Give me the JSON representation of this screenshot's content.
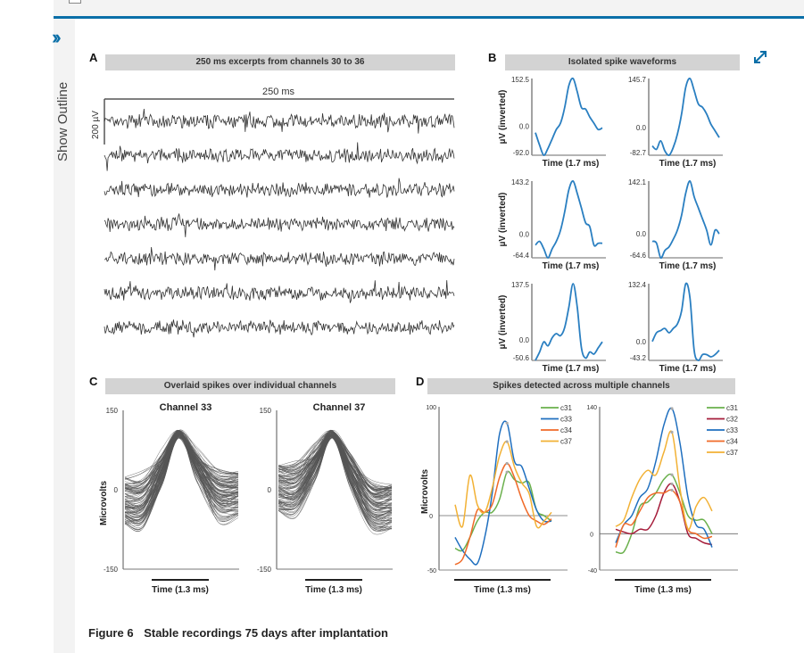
{
  "sidebar": {
    "toggle_icon": "double-chevron-right-icon",
    "label": "Show Outline"
  },
  "expand_icon": "expand-diagonal-icon",
  "figure": {
    "number": "Figure 6",
    "title": "Stable recordings 75 days after implantation"
  },
  "chart_data": [
    {
      "panel": "A",
      "type": "line",
      "title": "250 ms excerpts from channels 30 to 36",
      "time_scale_label": "250 ms",
      "amplitude_scale_label": "200 µV",
      "channels": [
        30,
        31,
        32,
        33,
        34,
        35,
        36
      ],
      "series_count": 7,
      "color": "#333333"
    },
    {
      "panel": "B",
      "type": "line",
      "title": "Isolated spike waveforms",
      "ylabel": "µV (inverted)",
      "xlabel": "Time (1.7 ms)",
      "color": "#2a7fc1",
      "waveforms": [
        {
          "ymax": "152.5",
          "yzero": "0.0",
          "ymin": "-92.0",
          "values": [
            -20,
            -60,
            -92,
            -70,
            -40,
            -10,
            10,
            60,
            130,
            152.5,
            110,
            60,
            55,
            30,
            10,
            -10,
            -5
          ]
        },
        {
          "ymax": "145.7",
          "yzero": "0.0",
          "ymin": "-82.7",
          "values": [
            -55,
            -65,
            -40,
            -70,
            -82.7,
            -60,
            -20,
            40,
            120,
            145.7,
            110,
            70,
            60,
            40,
            10,
            -10,
            -30
          ]
        },
        {
          "ymax": "143.2",
          "yzero": "0.0",
          "ymin": "-64.4",
          "values": [
            -30,
            -20,
            -40,
            -64.4,
            -40,
            -20,
            10,
            60,
            120,
            143.2,
            110,
            70,
            30,
            20,
            -30,
            -25,
            -25
          ]
        },
        {
          "ymax": "142.1",
          "yzero": "0.0",
          "ymin": "-64.6",
          "values": [
            -20,
            -25,
            -64.6,
            -45,
            -35,
            -15,
            10,
            50,
            110,
            142.1,
            100,
            70,
            40,
            10,
            -30,
            10,
            0
          ]
        },
        {
          "ymax": "137.5",
          "yzero": "0.0",
          "ymin": "-50.6",
          "values": [
            -50.6,
            -30,
            -5,
            -15,
            5,
            15,
            10,
            30,
            80,
            137.5,
            80,
            -20,
            -45,
            -30,
            -35,
            -20,
            -5
          ]
        },
        {
          "ymax": "132.4",
          "yzero": "0.0",
          "ymin": "-43.2",
          "values": [
            0,
            20,
            25,
            30,
            20,
            30,
            40,
            70,
            132.4,
            100,
            -20,
            -43.2,
            -30,
            -30,
            -35,
            -30,
            -20
          ]
        }
      ]
    },
    {
      "panel": "C",
      "type": "line",
      "title": "Overlaid spikes  over individual channels",
      "ylabel": "Microvolts",
      "xlabel": "Time (1.3 ms)",
      "ylim": [
        -150,
        150
      ],
      "yticks": [
        "150",
        "0",
        "-150"
      ],
      "color": "#555555",
      "plots": [
        {
          "name": "Channel 33",
          "peak": 105,
          "pre_mean": -20,
          "post_mean": -10,
          "spread": 45
        },
        {
          "name": "Channel 37",
          "peak": 105,
          "pre_mean": 5,
          "post_mean": -30,
          "spread": 45
        }
      ]
    },
    {
      "panel": "D",
      "type": "line",
      "title": "Spikes detected across multiple channels",
      "ylabel": "Microvolts",
      "xlabel": "Time (1.3 ms)",
      "plots": [
        {
          "ylim": [
            -50,
            100
          ],
          "yticks": [
            "100",
            "0",
            "-50"
          ],
          "series": [
            {
              "name": "c31",
              "color": "#6ab04c",
              "values": [
                -30,
                -32,
                -20,
                -5,
                3,
                3,
                15,
                40,
                33,
                30,
                30,
                5,
                0,
                -5
              ]
            },
            {
              "name": "c33",
              "color": "#1f6fbf",
              "values": [
                -20,
                -32,
                -40,
                -44,
                -20,
                20,
                75,
                85,
                50,
                45,
                25,
                5,
                -5,
                -5
              ]
            },
            {
              "name": "c34",
              "color": "#f06a28",
              "values": [
                -45,
                -40,
                -20,
                5,
                3,
                10,
                35,
                48,
                35,
                15,
                0,
                -5,
                -8,
                -3
              ]
            },
            {
              "name": "c37",
              "color": "#f2b134",
              "values": [
                10,
                -10,
                37,
                10,
                3,
                25,
                55,
                68,
                45,
                30,
                20,
                -10,
                -5,
                3
              ]
            }
          ]
        },
        {
          "ylim": [
            -40,
            140
          ],
          "yticks": [
            "140",
            "0",
            "-40"
          ],
          "series": [
            {
              "name": "c31",
              "color": "#6ab04c",
              "values": [
                -20,
                -20,
                0,
                30,
                35,
                45,
                60,
                65,
                45,
                20,
                15,
                15,
                0
              ]
            },
            {
              "name": "c32",
              "color": "#a51c3a",
              "values": [
                5,
                2,
                0,
                5,
                5,
                20,
                45,
                55,
                35,
                0,
                -5,
                -10,
                -12
              ]
            },
            {
              "name": "c33",
              "color": "#1f6fbf",
              "values": [
                -10,
                10,
                20,
                40,
                50,
                80,
                120,
                138,
                100,
                40,
                10,
                5,
                -15
              ]
            },
            {
              "name": "c34",
              "color": "#f06a28",
              "values": [
                -15,
                10,
                10,
                25,
                40,
                45,
                45,
                48,
                35,
                5,
                0,
                -5,
                -3
              ]
            },
            {
              "name": "c37",
              "color": "#f2b134",
              "values": [
                8,
                15,
                40,
                60,
                70,
                65,
                90,
                112,
                50,
                5,
                30,
                40,
                25
              ]
            }
          ]
        }
      ]
    }
  ]
}
